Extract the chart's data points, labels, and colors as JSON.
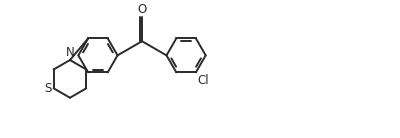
{
  "background_color": "#ffffff",
  "line_color": "#2a2a2a",
  "line_width": 1.4,
  "text_color": "#2a2a2a",
  "font_size_atom": 8.5,
  "label_N": "N",
  "label_S": "S",
  "label_O": "O",
  "label_Cl": "Cl",
  "figsize": [
    4.0,
    1.38
  ],
  "dpi": 100
}
